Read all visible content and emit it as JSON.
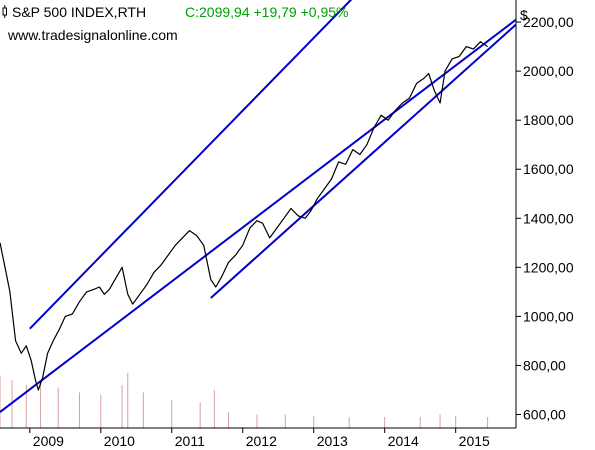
{
  "header": {
    "symbol": "S&P 500 INDEX,RTH",
    "change_text": "C:2099,94 +19,79 +0,95%",
    "watermark": "www.tradesignalonline.com",
    "currency": "$"
  },
  "colors": {
    "background": "#ffffff",
    "price_line": "#000000",
    "channel_lines": "#0000cc",
    "volume_bars": "#d9a0a0",
    "change_positive": "#00a000",
    "axis": "#000000"
  },
  "chart_data": {
    "type": "line",
    "title": "S&P 500 INDEX,RTH",
    "xlabel": "",
    "ylabel": "",
    "x_range": [
      2008.58,
      2015.85
    ],
    "ylim": [
      545,
      2290
    ],
    "y_ticks": [
      600,
      800,
      1000,
      1200,
      1400,
      1600,
      1800,
      2000,
      2200
    ],
    "y_tick_labels": [
      "600,00",
      "800,00",
      "1000,00",
      "1200,00",
      "1400,00",
      "1600,00",
      "1800,00",
      "2000,00",
      "2200,00"
    ],
    "x_ticks": [
      2009,
      2010,
      2011,
      2012,
      2013,
      2014,
      2015
    ],
    "x_tick_labels": [
      "2009",
      "2010",
      "2011",
      "2012",
      "2013",
      "2014",
      "2015"
    ],
    "grid": false,
    "series": [
      {
        "kind": "price",
        "x": [
          2008.58,
          2008.65,
          2008.72,
          2008.8,
          2008.88,
          2008.95,
          2009.02,
          2009.08,
          2009.12,
          2009.18,
          2009.25,
          2009.33,
          2009.42,
          2009.5,
          2009.6,
          2009.7,
          2009.8,
          2009.9,
          2009.98,
          2010.05,
          2010.12,
          2010.2,
          2010.3,
          2010.38,
          2010.45,
          2010.55,
          2010.65,
          2010.75,
          2010.85,
          2010.95,
          2011.05,
          2011.15,
          2011.25,
          2011.35,
          2011.45,
          2011.55,
          2011.62,
          2011.7,
          2011.8,
          2011.9,
          2012.0,
          2012.1,
          2012.2,
          2012.28,
          2012.38,
          2012.48,
          2012.58,
          2012.68,
          2012.78,
          2012.88,
          2012.96,
          2013.05,
          2013.15,
          2013.25,
          2013.35,
          2013.45,
          2013.55,
          2013.65,
          2013.75,
          2013.85,
          2013.95,
          2014.05,
          2014.15,
          2014.25,
          2014.35,
          2014.45,
          2014.55,
          2014.62,
          2014.7,
          2014.78,
          2014.85,
          2014.95,
          2015.05,
          2015.15,
          2015.25,
          2015.35,
          2015.45
        ],
        "y": [
          1300,
          1200,
          1100,
          900,
          850,
          880,
          820,
          740,
          700,
          750,
          850,
          900,
          950,
          1000,
          1010,
          1060,
          1100,
          1110,
          1120,
          1090,
          1110,
          1150,
          1200,
          1090,
          1050,
          1090,
          1130,
          1180,
          1210,
          1250,
          1290,
          1320,
          1350,
          1330,
          1290,
          1150,
          1120,
          1160,
          1220,
          1250,
          1290,
          1360,
          1390,
          1380,
          1320,
          1360,
          1400,
          1440,
          1410,
          1400,
          1430,
          1480,
          1520,
          1560,
          1630,
          1620,
          1680,
          1660,
          1700,
          1770,
          1820,
          1800,
          1840,
          1870,
          1890,
          1950,
          1970,
          1990,
          1920,
          1870,
          2000,
          2050,
          2060,
          2100,
          2090,
          2120,
          2100
        ]
      },
      {
        "kind": "volume",
        "x": [
          2008.58,
          2008.75,
          2008.95,
          2009.15,
          2009.4,
          2009.7,
          2010.0,
          2010.3,
          2010.38,
          2010.6,
          2011.0,
          2011.4,
          2011.6,
          2011.8,
          2012.2,
          2012.6,
          2013.0,
          2013.5,
          2014.0,
          2014.5,
          2014.78,
          2015.0,
          2015.45
        ],
        "y": [
          760,
          740,
          720,
          740,
          710,
          690,
          680,
          720,
          770,
          690,
          660,
          650,
          700,
          610,
          600,
          600,
          595,
          590,
          590,
          590,
          600,
          595,
          590
        ]
      }
    ],
    "channels": [
      {
        "x": [
          2008.58,
          2015.85
        ],
        "y": [
          610,
          2210
        ]
      },
      {
        "x": [
          2011.55,
          2015.85
        ],
        "y": [
          1075,
          2190
        ]
      },
      {
        "x": [
          2009.0,
          2015.85
        ],
        "y": [
          950,
          2980
        ]
      }
    ]
  }
}
